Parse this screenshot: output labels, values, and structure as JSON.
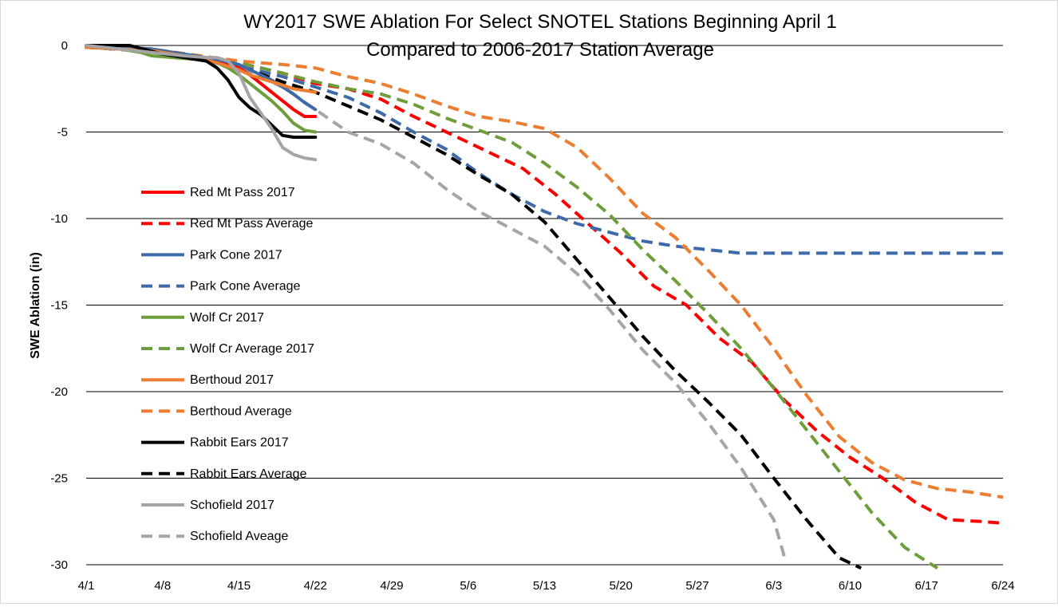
{
  "chart_data": {
    "type": "line",
    "title": [
      "WY2017 SWE Ablation For Select SNOTEL Stations Beginning April 1",
      "Compared to 2006-2017 Station Average"
    ],
    "xlabel": "",
    "ylabel": "SWE Ablation (in)",
    "x_unit": "days since April 1",
    "xlim": [
      0,
      84
    ],
    "ylim": [
      -30,
      0
    ],
    "x_ticks": [
      {
        "x": 0,
        "label": "4/1"
      },
      {
        "x": 7,
        "label": "4/8"
      },
      {
        "x": 14,
        "label": "4/15"
      },
      {
        "x": 21,
        "label": "4/22"
      },
      {
        "x": 28,
        "label": "4/29"
      },
      {
        "x": 35,
        "label": "5/6"
      },
      {
        "x": 42,
        "label": "5/13"
      },
      {
        "x": 49,
        "label": "5/20"
      },
      {
        "x": 56,
        "label": "5/27"
      },
      {
        "x": 63,
        "label": "6/3"
      },
      {
        "x": 70,
        "label": "6/10"
      },
      {
        "x": 77,
        "label": "6/17"
      },
      {
        "x": 84,
        "label": "6/24"
      }
    ],
    "y_ticks": [
      {
        "y": 0,
        "label": "0"
      },
      {
        "y": -5,
        "label": "-5"
      },
      {
        "y": -10,
        "label": "-10"
      },
      {
        "y": -15,
        "label": "-15"
      },
      {
        "y": -20,
        "label": "-20"
      },
      {
        "y": -25,
        "label": "-25"
      },
      {
        "y": -30,
        "label": "-30"
      }
    ],
    "gridlines": "horizontal",
    "legend_position": "left",
    "series": [
      {
        "name": "Red Mt Pass 2017",
        "color": "#ff0000",
        "dashed": false,
        "x": [
          0,
          6,
          7,
          10,
          12,
          14,
          15,
          16,
          17,
          18,
          19,
          20,
          21
        ],
        "y": [
          -0.1,
          -0.3,
          -0.5,
          -0.7,
          -0.9,
          -1.3,
          -1.7,
          -2.2,
          -2.7,
          -3.2,
          -3.7,
          -4.1,
          -4.1
        ]
      },
      {
        "name": "Red Mt Pass Average",
        "color": "#ff0000",
        "dashed": true,
        "x": [
          0,
          7,
          14,
          18,
          21,
          24,
          27,
          30,
          35,
          40,
          43,
          46,
          49,
          52,
          55,
          58,
          61,
          64,
          67,
          70,
          73,
          76,
          79,
          82,
          84
        ],
        "y": [
          -0.1,
          -0.3,
          -1.0,
          -1.6,
          -2.2,
          -2.5,
          -3.1,
          -4.1,
          -5.6,
          -7.1,
          -8.6,
          -10.3,
          -12,
          -13.9,
          -15,
          -16.9,
          -18.3,
          -20.5,
          -22.3,
          -23.8,
          -25,
          -26.4,
          -27.4,
          -27.5,
          -27.6
        ]
      },
      {
        "name": "Park Cone 2017",
        "color": "#3d6aa8",
        "dashed": false,
        "x": [
          0,
          3,
          6,
          8,
          10,
          12,
          14,
          15,
          16,
          17,
          18,
          19,
          20,
          21
        ],
        "y": [
          -0.1,
          -0.1,
          -0.2,
          -0.4,
          -0.6,
          -0.8,
          -1.1,
          -1.4,
          -1.7,
          -2.0,
          -2.4,
          -2.8,
          -3.3,
          -3.7
        ]
      },
      {
        "name": "Park Cone Average",
        "color": "#3d6aa8",
        "dashed": true,
        "x": [
          0,
          7,
          14,
          18,
          21,
          24,
          27,
          30,
          33,
          36,
          39,
          42,
          45,
          48,
          51,
          54,
          57,
          60,
          63,
          70,
          77,
          84
        ],
        "y": [
          -0.1,
          -0.4,
          -1.2,
          -1.8,
          -2.4,
          -3.0,
          -3.9,
          -5.0,
          -6.0,
          -7.4,
          -8.6,
          -9.6,
          -10.3,
          -10.8,
          -11.3,
          -11.6,
          -11.8,
          -12,
          -12,
          -12,
          -12,
          -12
        ]
      },
      {
        "name": "Wolf Cr 2017",
        "color": "#6e9e3c",
        "dashed": false,
        "x": [
          0,
          3,
          5,
          6,
          8,
          10,
          12,
          13,
          14,
          15,
          16,
          17,
          18,
          19,
          20,
          21
        ],
        "y": [
          -0.1,
          -0.2,
          -0.4,
          -0.6,
          -0.7,
          -0.8,
          -1.0,
          -1.3,
          -1.7,
          -2.2,
          -2.7,
          -3.2,
          -3.8,
          -4.5,
          -4.9,
          -5.0
        ]
      },
      {
        "name": "Wolf Cr Average 2017",
        "color": "#6e9e3c",
        "dashed": true,
        "x": [
          0,
          7,
          14,
          18,
          21,
          24,
          27,
          30,
          33,
          36,
          39,
          42,
          45,
          48,
          51,
          54,
          57,
          60,
          63,
          66,
          69,
          72,
          75,
          78
        ],
        "y": [
          -0.1,
          -0.3,
          -1.0,
          -1.6,
          -2.1,
          -2.5,
          -2.8,
          -3.4,
          -4.2,
          -4.9,
          -5.6,
          -6.8,
          -8.2,
          -9.8,
          -11.8,
          -13.6,
          -15.5,
          -17.5,
          -19.8,
          -22.2,
          -24.6,
          -27,
          -29,
          -30.2
        ]
      },
      {
        "name": "Berthoud 2017",
        "color": "#ed7d31",
        "dashed": false,
        "x": [
          0,
          6,
          8,
          10,
          12,
          14,
          15,
          16,
          17,
          18,
          19,
          20,
          21
        ],
        "y": [
          -0.1,
          -0.3,
          -0.5,
          -0.7,
          -1.0,
          -1.4,
          -1.7,
          -1.9,
          -2.1,
          -2.3,
          -2.5,
          -2.6,
          -2.7
        ]
      },
      {
        "name": "Berthoud Average",
        "color": "#ed7d31",
        "dashed": true,
        "x": [
          0,
          7,
          14,
          18,
          21,
          24,
          27,
          30,
          33,
          36,
          39,
          42,
          45,
          48,
          51,
          54,
          57,
          60,
          63,
          66,
          69,
          72,
          75,
          78,
          81,
          84
        ],
        "y": [
          -0.1,
          -0.3,
          -0.9,
          -1.1,
          -1.3,
          -1.8,
          -2.2,
          -2.8,
          -3.5,
          -4.1,
          -4.4,
          -4.8,
          -5.9,
          -7.7,
          -9.7,
          -11.1,
          -13,
          -15,
          -17.5,
          -20.2,
          -22.6,
          -24.1,
          -25.1,
          -25.6,
          -25.8,
          -26.1
        ]
      },
      {
        "name": "Rabbit Ears 2017",
        "color": "#000000",
        "dashed": false,
        "x": [
          0,
          4,
          7,
          9,
          11,
          12,
          13,
          14,
          15,
          16,
          17,
          18,
          19,
          20,
          21
        ],
        "y": [
          0,
          0,
          -0.5,
          -0.7,
          -0.9,
          -1.3,
          -2.0,
          -3.0,
          -3.6,
          -4.0,
          -4.6,
          -5.2,
          -5.3,
          -5.3,
          -5.3
        ]
      },
      {
        "name": "Rabbit Ears Average",
        "color": "#000000",
        "dashed": true,
        "x": [
          0,
          7,
          14,
          18,
          21,
          24,
          27,
          30,
          33,
          36,
          39,
          42,
          45,
          48,
          51,
          54,
          57,
          60,
          63,
          66,
          69,
          71
        ],
        "y": [
          -0.1,
          -0.4,
          -1.2,
          -2.1,
          -2.7,
          -3.5,
          -4.3,
          -5.3,
          -6.3,
          -7.5,
          -8.6,
          -10.2,
          -12.4,
          -14.6,
          -16.8,
          -18.8,
          -20.6,
          -22.5,
          -25,
          -27.4,
          -29.6,
          -30.2
        ]
      },
      {
        "name": "Schofield 2017",
        "color": "#a5a5a5",
        "dashed": false,
        "x": [
          0,
          3,
          6,
          9,
          11,
          12,
          13,
          14,
          15,
          16,
          17,
          18,
          19,
          20,
          21
        ],
        "y": [
          0,
          -0.2,
          -0.4,
          -0.6,
          -0.7,
          -0.7,
          -0.9,
          -1.6,
          -3.0,
          -3.9,
          -4.8,
          -5.9,
          -6.3,
          -6.5,
          -6.6
        ]
      },
      {
        "name": "Schofield Aveage",
        "color": "#a5a5a5",
        "dashed": true,
        "x": [
          0,
          7,
          14,
          18,
          21,
          24,
          27,
          30,
          33,
          36,
          39,
          42,
          45,
          48,
          51,
          54,
          57,
          60,
          63,
          64
        ],
        "y": [
          -0.1,
          -0.4,
          -1.3,
          -2.4,
          -3.7,
          -5.0,
          -5.7,
          -6.8,
          -8.3,
          -9.6,
          -10.6,
          -11.6,
          -13.2,
          -15.3,
          -17.6,
          -19.5,
          -21.8,
          -24.4,
          -27.4,
          -29.6
        ]
      }
    ]
  }
}
